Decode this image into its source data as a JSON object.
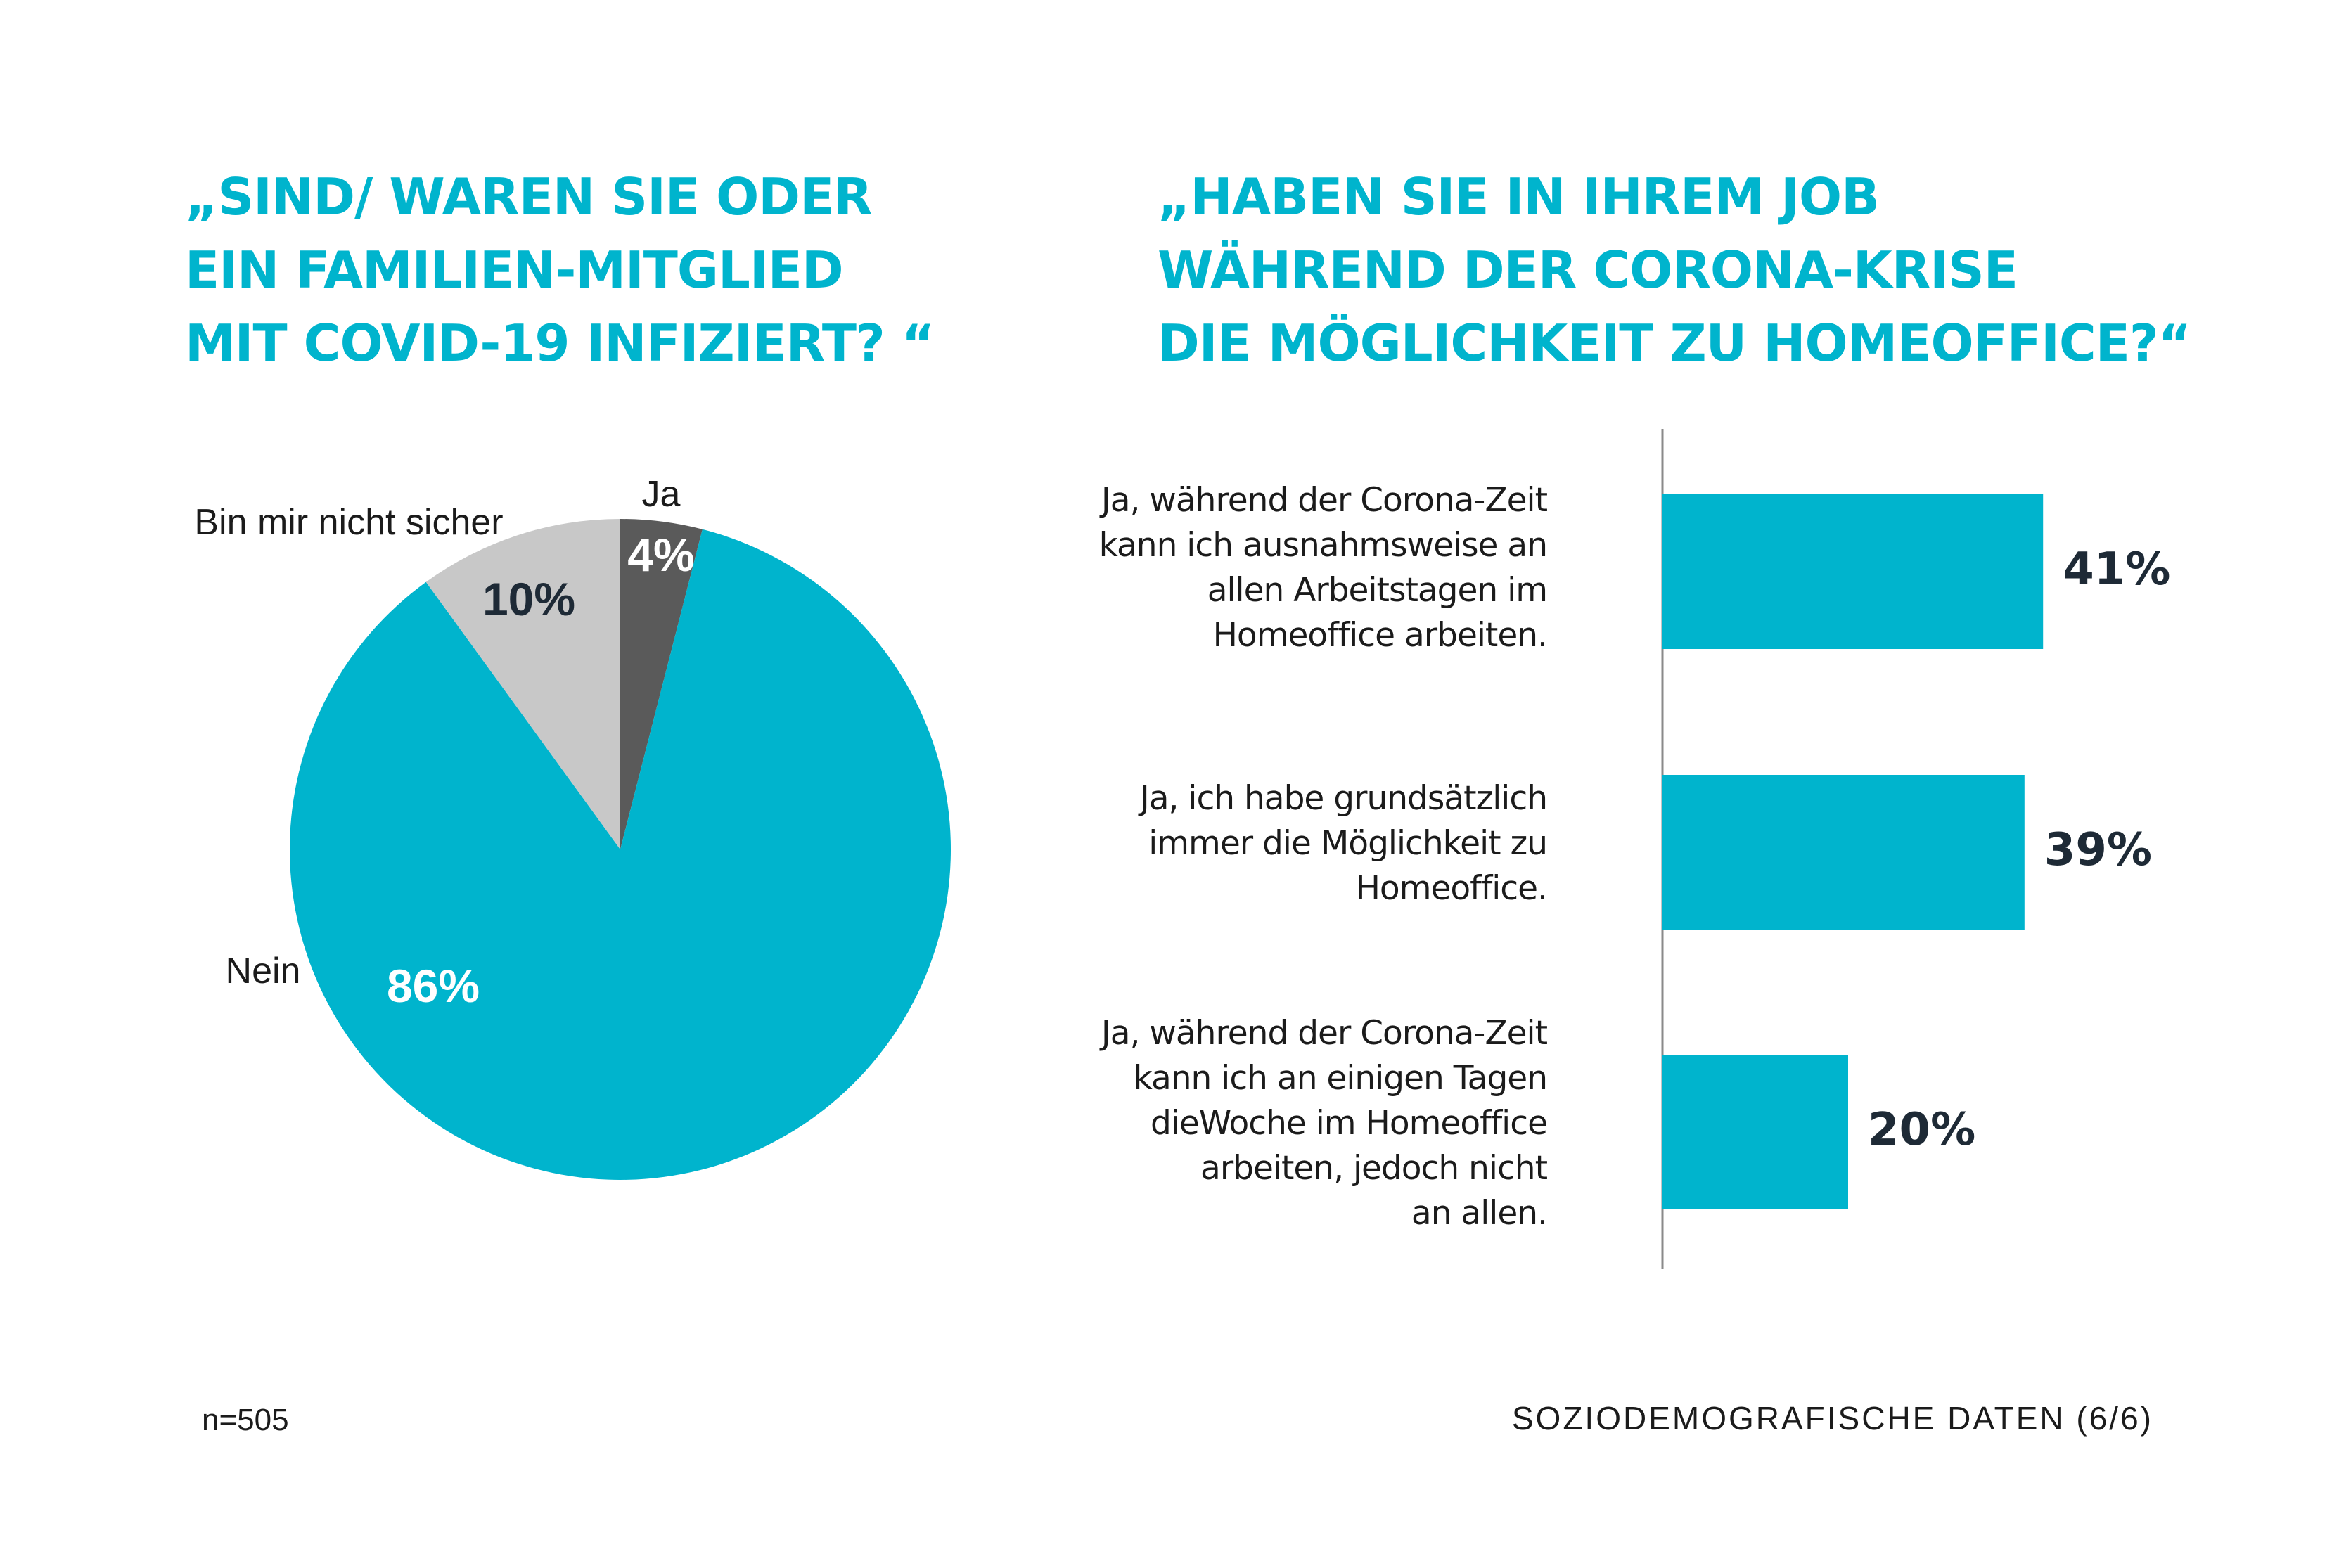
{
  "left_chart": {
    "title_lines": [
      "„SIND/ WAREN SIE ODER",
      "EIN FAMILIEN-MITGLIED",
      "MIT COVID-19 INFIZIERT? “"
    ]
  },
  "right_chart": {
    "title_lines": [
      "„HABEN SIE IN IHREM JOB",
      "WÄHREND DER CORONA-KRISE",
      "DIE MÖGLICHKEIT ZU HOMEOFFICE?“"
    ]
  },
  "chart_data": [
    {
      "type": "pie",
      "title": "„SIND/ WAREN SIE ODER EIN FAMILIEN-MITGLIED MIT COVID-19 INFIZIERT? “",
      "slices": [
        {
          "label": "Ja",
          "value": 4,
          "display": "4%",
          "color": "#5a5a5a",
          "value_color": "#ffffff"
        },
        {
          "label": "Nein",
          "value": 86,
          "display": "86%",
          "color": "#00b4cd",
          "value_color": "#ffffff"
        },
        {
          "label": "Bin mir nicht sicher",
          "value": 10,
          "display": "10%",
          "color": "#c8c8c8",
          "value_color": "#1e2a36"
        }
      ]
    },
    {
      "type": "bar",
      "orientation": "horizontal",
      "title": "„HABEN SIE IN IHREM JOB WÄHREND DER CORONA-KRISE DIE MÖGLICHKEIT ZU HOMEOFFICE?“",
      "categories": [
        [
          "Ja, während der Corona-Zeit",
          "kann ich ausnahmsweise an",
          "allen Arbeitstagen im",
          "Homeoffice arbeiten."
        ],
        [
          "Ja, ich habe grundsätzlich",
          "immer die Möglichkeit zu",
          "Homeoffice."
        ],
        [
          "Ja, während der Corona-Zeit",
          "kann ich an einigen Tagen",
          "dieWoche im Homeoffice",
          "arbeiten, jedoch nicht",
          "an allen."
        ]
      ],
      "values": [
        41,
        39,
        20
      ],
      "value_labels": [
        "41%",
        "39%",
        "20%"
      ],
      "xlim": [
        0,
        100
      ],
      "bar_color": "#00b4cd"
    }
  ],
  "footnote": "n=505",
  "source": "SOZIODEMOGRAFISCHE DATEN (6/6)"
}
